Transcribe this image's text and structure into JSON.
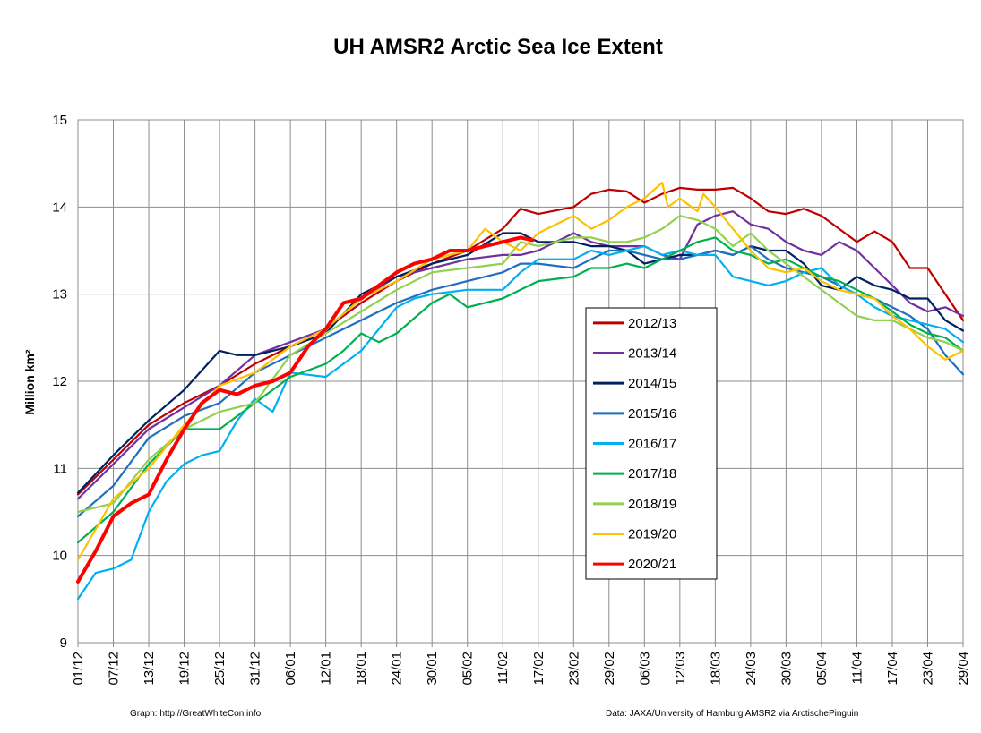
{
  "chart_data": {
    "type": "line",
    "title": "UH AMSR2 Arctic Sea Ice Extent",
    "ylabel": "Million km²",
    "xlabel": "",
    "ylim": [
      9,
      15
    ],
    "y_ticks": [
      "9",
      "10",
      "11",
      "12",
      "13",
      "14",
      "15"
    ],
    "x_range_days": [
      0,
      150
    ],
    "x_ticks": [
      "01/12",
      "07/12",
      "13/12",
      "19/12",
      "25/12",
      "31/12",
      "06/01",
      "12/01",
      "18/01",
      "24/01",
      "30/01",
      "05/02",
      "11/02",
      "17/02",
      "23/02",
      "29/02",
      "06/03",
      "12/03",
      "18/03",
      "24/03",
      "30/03",
      "05/04",
      "11/04",
      "17/04",
      "23/04",
      "29/04"
    ],
    "grid": true,
    "legend_position": "center-right",
    "series": [
      {
        "name": "2012/13",
        "color": "#c00000",
        "x": [
          0,
          6,
          12,
          18,
          24,
          30,
          36,
          42,
          48,
          54,
          60,
          66,
          72,
          75,
          78,
          84,
          87,
          90,
          93,
          96,
          99,
          102,
          105,
          108,
          111,
          114,
          117,
          120,
          123,
          126,
          129,
          132,
          135,
          138,
          141,
          144,
          147,
          150
        ],
        "y": [
          10.7,
          11.1,
          11.5,
          11.75,
          11.95,
          12.2,
          12.4,
          12.6,
          12.9,
          13.15,
          13.35,
          13.5,
          13.75,
          13.98,
          13.92,
          14.0,
          14.15,
          14.2,
          14.18,
          14.05,
          14.15,
          14.22,
          14.2,
          14.2,
          14.22,
          14.1,
          13.95,
          13.92,
          13.98,
          13.9,
          13.75,
          13.6,
          13.72,
          13.6,
          13.3,
          13.3,
          13.0,
          12.7
        ]
      },
      {
        "name": "2013/14",
        "color": "#7030a0",
        "x": [
          0,
          6,
          12,
          18,
          24,
          30,
          36,
          42,
          48,
          54,
          60,
          66,
          72,
          75,
          78,
          84,
          87,
          90,
          93,
          96,
          99,
          102,
          105,
          108,
          111,
          114,
          117,
          120,
          123,
          126,
          129,
          132,
          135,
          138,
          141,
          144,
          147,
          150
        ],
        "y": [
          10.65,
          11.05,
          11.45,
          11.7,
          11.95,
          12.3,
          12.45,
          12.6,
          12.95,
          13.2,
          13.3,
          13.4,
          13.45,
          13.45,
          13.5,
          13.7,
          13.6,
          13.55,
          13.55,
          13.55,
          13.45,
          13.4,
          13.8,
          13.9,
          13.95,
          13.8,
          13.75,
          13.6,
          13.5,
          13.45,
          13.6,
          13.5,
          13.3,
          13.1,
          12.9,
          12.8,
          12.85,
          12.75
        ]
      },
      {
        "name": "2014/15",
        "color": "#002060",
        "x": [
          0,
          6,
          12,
          18,
          24,
          27,
          30,
          36,
          42,
          48,
          54,
          60,
          66,
          72,
          75,
          78,
          84,
          87,
          90,
          93,
          96,
          99,
          102,
          105,
          108,
          111,
          114,
          117,
          120,
          123,
          126,
          129,
          132,
          135,
          138,
          141,
          144,
          147,
          150
        ],
        "y": [
          10.72,
          11.15,
          11.55,
          11.9,
          12.35,
          12.3,
          12.3,
          12.4,
          12.55,
          13.0,
          13.2,
          13.35,
          13.45,
          13.7,
          13.7,
          13.6,
          13.6,
          13.55,
          13.55,
          13.5,
          13.35,
          13.4,
          13.45,
          13.45,
          13.5,
          13.45,
          13.55,
          13.5,
          13.5,
          13.35,
          13.1,
          13.05,
          13.2,
          13.1,
          13.05,
          12.95,
          12.95,
          12.7,
          12.58
        ]
      },
      {
        "name": "2015/16",
        "color": "#1f6fbf",
        "x": [
          0,
          6,
          12,
          18,
          24,
          30,
          36,
          42,
          48,
          54,
          60,
          66,
          72,
          75,
          78,
          84,
          87,
          90,
          93,
          96,
          99,
          102,
          105,
          108,
          111,
          114,
          117,
          120,
          123,
          126,
          129,
          132,
          135,
          138,
          141,
          144,
          147,
          150
        ],
        "y": [
          10.45,
          10.8,
          11.35,
          11.6,
          11.75,
          12.1,
          12.3,
          12.5,
          12.7,
          12.9,
          13.05,
          13.15,
          13.25,
          13.35,
          13.35,
          13.3,
          13.4,
          13.5,
          13.5,
          13.45,
          13.4,
          13.4,
          13.45,
          13.5,
          13.45,
          13.55,
          13.4,
          13.3,
          13.25,
          13.2,
          13.1,
          13.0,
          12.95,
          12.85,
          12.75,
          12.6,
          12.3,
          12.08
        ]
      },
      {
        "name": "2016/17",
        "color": "#00b0f0",
        "x": [
          0,
          3,
          6,
          9,
          12,
          15,
          18,
          21,
          24,
          27,
          30,
          33,
          36,
          42,
          45,
          48,
          54,
          57,
          60,
          66,
          72,
          75,
          78,
          84,
          87,
          90,
          93,
          96,
          99,
          102,
          105,
          108,
          111,
          114,
          117,
          120,
          123,
          126,
          129,
          132,
          135,
          138,
          141,
          144,
          147,
          150
        ],
        "y": [
          9.5,
          9.8,
          9.85,
          9.95,
          10.5,
          10.85,
          11.05,
          11.15,
          11.2,
          11.55,
          11.8,
          11.65,
          12.1,
          12.05,
          12.2,
          12.35,
          12.85,
          12.95,
          13.0,
          13.05,
          13.05,
          13.25,
          13.4,
          13.4,
          13.5,
          13.45,
          13.5,
          13.55,
          13.45,
          13.5,
          13.45,
          13.45,
          13.2,
          13.15,
          13.1,
          13.15,
          13.25,
          13.3,
          13.1,
          13.0,
          12.85,
          12.75,
          12.7,
          12.65,
          12.6,
          12.45
        ]
      },
      {
        "name": "2017/18",
        "color": "#00b050",
        "x": [
          0,
          6,
          12,
          18,
          24,
          30,
          36,
          42,
          45,
          48,
          51,
          54,
          60,
          63,
          66,
          72,
          75,
          78,
          84,
          87,
          90,
          93,
          96,
          99,
          102,
          105,
          108,
          111,
          114,
          117,
          120,
          123,
          126,
          129,
          132,
          135,
          138,
          141,
          144,
          147,
          150
        ],
        "y": [
          10.15,
          10.5,
          11.05,
          11.45,
          11.45,
          11.75,
          12.05,
          12.2,
          12.35,
          12.55,
          12.45,
          12.55,
          12.9,
          13.0,
          12.85,
          12.95,
          13.05,
          13.15,
          13.2,
          13.3,
          13.3,
          13.35,
          13.3,
          13.4,
          13.5,
          13.6,
          13.65,
          13.5,
          13.45,
          13.35,
          13.4,
          13.3,
          13.2,
          13.15,
          13.05,
          12.95,
          12.8,
          12.65,
          12.55,
          12.5,
          12.35
        ]
      },
      {
        "name": "2018/19",
        "color": "#92d050",
        "x": [
          0,
          6,
          12,
          18,
          24,
          30,
          36,
          42,
          48,
          54,
          60,
          66,
          72,
          75,
          78,
          84,
          87,
          90,
          93,
          96,
          99,
          102,
          105,
          108,
          111,
          114,
          117,
          120,
          123,
          126,
          129,
          132,
          135,
          138,
          141,
          144,
          147,
          150
        ],
        "y": [
          10.5,
          10.6,
          11.1,
          11.45,
          11.65,
          11.75,
          12.3,
          12.55,
          12.8,
          13.05,
          13.25,
          13.3,
          13.35,
          13.6,
          13.55,
          13.65,
          13.65,
          13.6,
          13.6,
          13.65,
          13.75,
          13.9,
          13.85,
          13.75,
          13.55,
          13.7,
          13.5,
          13.35,
          13.2,
          13.05,
          12.9,
          12.75,
          12.7,
          12.7,
          12.6,
          12.5,
          12.45,
          12.35
        ]
      },
      {
        "name": "2019/20",
        "color": "#ffc000",
        "x": [
          0,
          6,
          12,
          18,
          24,
          30,
          36,
          42,
          48,
          54,
          60,
          66,
          69,
          72,
          75,
          78,
          84,
          87,
          90,
          93,
          96,
          99,
          100,
          102,
          105,
          106,
          108,
          111,
          114,
          117,
          120,
          123,
          126,
          129,
          132,
          135,
          138,
          141,
          144,
          147,
          150
        ],
        "y": [
          9.95,
          10.65,
          11.0,
          11.5,
          11.95,
          12.1,
          12.4,
          12.6,
          12.95,
          13.15,
          13.4,
          13.5,
          13.75,
          13.6,
          13.5,
          13.7,
          13.9,
          13.75,
          13.85,
          14.0,
          14.1,
          14.28,
          14.0,
          14.1,
          13.95,
          14.15,
          14.0,
          13.75,
          13.5,
          13.3,
          13.25,
          13.3,
          13.15,
          13.05,
          13.0,
          12.95,
          12.75,
          12.6,
          12.4,
          12.25,
          12.35
        ]
      },
      {
        "name": "2020/21",
        "color": "#ff0000",
        "x": [
          0,
          3,
          6,
          9,
          12,
          15,
          18,
          21,
          24,
          27,
          30,
          33,
          36,
          39,
          42,
          45,
          48,
          51,
          54,
          57,
          60,
          63,
          66,
          69,
          72,
          75,
          77
        ],
        "y": [
          9.7,
          10.05,
          10.45,
          10.6,
          10.7,
          11.1,
          11.45,
          11.75,
          11.9,
          11.85,
          11.95,
          12.0,
          12.1,
          12.4,
          12.6,
          12.9,
          12.95,
          13.1,
          13.25,
          13.35,
          13.4,
          13.5,
          13.5,
          13.55,
          13.6,
          13.65,
          13.62
        ]
      }
    ]
  },
  "credits": {
    "left": "Graph: http://GreatWhiteCon.info",
    "right": "Data: JAXA/University of Hamburg AMSR2 via  ArctischePinguin"
  }
}
